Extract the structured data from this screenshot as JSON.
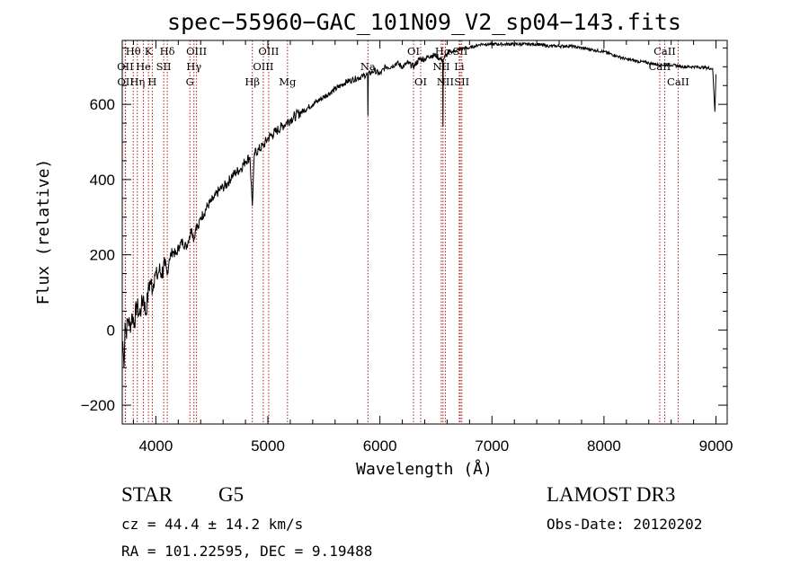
{
  "chart_data": {
    "type": "line",
    "title": "spec−55960−GAC_101N09_V2_sp04−143.fits",
    "xlabel": "Wavelength (Å)",
    "ylabel": "Flux (relative)",
    "xlim": [
      3700,
      9100
    ],
    "ylim": [
      -250,
      770
    ],
    "x_ticks": [
      4000,
      5000,
      6000,
      7000,
      8000,
      9000
    ],
    "x_tick_labels": [
      "4000",
      "5000",
      "6000",
      "7000",
      "8000",
      "9000"
    ],
    "y_ticks": [
      -200,
      0,
      200,
      400,
      600
    ],
    "y_tick_labels": [
      "−200",
      "0",
      "200",
      "400",
      "600"
    ],
    "series": [
      {
        "name": "spectrum",
        "color": "#000000",
        "x": [
          3705,
          3715,
          3725,
          3735,
          3750,
          3770,
          3790,
          3810,
          3830,
          3850,
          3870,
          3890,
          3910,
          3930,
          3950,
          3970,
          3990,
          4010,
          4030,
          4050,
          4080,
          4101,
          4120,
          4150,
          4180,
          4210,
          4240,
          4270,
          4300,
          4320,
          4340,
          4360,
          4380,
          4400,
          4430,
          4460,
          4490,
          4520,
          4560,
          4600,
          4640,
          4680,
          4720,
          4760,
          4800,
          4840,
          4861,
          4880,
          4920,
          4960,
          5000,
          5040,
          5080,
          5120,
          5160,
          5200,
          5250,
          5300,
          5350,
          5400,
          5450,
          5500,
          5550,
          5600,
          5650,
          5700,
          5750,
          5800,
          5850,
          5890,
          5893,
          5897,
          5950,
          6000,
          6050,
          6100,
          6150,
          6200,
          6250,
          6300,
          6350,
          6400,
          6450,
          6500,
          6540,
          6560,
          6563,
          6566,
          6590,
          6620,
          6660,
          6700,
          6750,
          6800,
          6850,
          6900,
          6950,
          7000,
          7100,
          7200,
          7300,
          7400,
          7500,
          7600,
          7700,
          7800,
          7900,
          8000,
          8100,
          8200,
          8300,
          8400,
          8500,
          8600,
          8700,
          8800,
          8900,
          8970,
          8990,
          9000
        ],
        "y": [
          -30,
          -100,
          20,
          -10,
          30,
          10,
          40,
          20,
          70,
          40,
          60,
          90,
          40,
          100,
          130,
          110,
          150,
          140,
          160,
          150,
          170,
          145,
          190,
          210,
          200,
          225,
          235,
          220,
          250,
          270,
          240,
          280,
          270,
          300,
          310,
          330,
          340,
          350,
          370,
          380,
          390,
          410,
          420,
          430,
          450,
          460,
          330,
          470,
          480,
          490,
          510,
          520,
          530,
          540,
          550,
          560,
          570,
          580,
          590,
          600,
          610,
          620,
          630,
          640,
          650,
          660,
          665,
          670,
          675,
          680,
          570,
          680,
          690,
          680,
          700,
          700,
          710,
          700,
          710,
          700,
          720,
          720,
          730,
          730,
          720,
          720,
          540,
          720,
          730,
          740,
          740,
          745,
          750,
          750,
          755,
          760,
          760,
          760,
          760,
          760,
          760,
          760,
          755,
          755,
          755,
          750,
          745,
          740,
          730,
          720,
          715,
          710,
          705,
          705,
          700,
          700,
          698,
          695,
          580,
          680
        ]
      }
    ],
    "lines": [
      {
        "label": "Hθ",
        "wl": 3798,
        "row": 1
      },
      {
        "label": "OII",
        "wl": 3727,
        "row": 2
      },
      {
        "label": "OII",
        "wl": 3729,
        "row": 3
      },
      {
        "label": "Hη",
        "wl": 3835,
        "row": 3
      },
      {
        "label": "He",
        "wl": 3889,
        "row": 2
      },
      {
        "label": "K",
        "wl": 3934,
        "row": 1
      },
      {
        "label": "H",
        "wl": 3968,
        "row": 3
      },
      {
        "label": "SII",
        "wl": 4070,
        "row": 2
      },
      {
        "label": "Hδ",
        "wl": 4102,
        "row": 1
      },
      {
        "label": "OIII",
        "wl": 4363,
        "row": 1
      },
      {
        "label": "Hγ",
        "wl": 4340,
        "row": 2
      },
      {
        "label": "G",
        "wl": 4304,
        "row": 3
      },
      {
        "label": "Hβ",
        "wl": 4861,
        "row": 3
      },
      {
        "label": "OIII",
        "wl": 5007,
        "row": 1
      },
      {
        "label": "OIII",
        "wl": 4959,
        "row": 2
      },
      {
        "label": "Mg",
        "wl": 5175,
        "row": 3
      },
      {
        "label": "Na",
        "wl": 5893,
        "row": 2
      },
      {
        "label": "OI",
        "wl": 6300,
        "row": 1
      },
      {
        "label": "OI",
        "wl": 6364,
        "row": 3
      },
      {
        "label": "Hα",
        "wl": 6563,
        "row": 1
      },
      {
        "label": "NII",
        "wl": 6548,
        "row": 2
      },
      {
        "label": "NII",
        "wl": 6584,
        "row": 3
      },
      {
        "label": "SII",
        "wl": 6717,
        "row": 1
      },
      {
        "label": "Li",
        "wl": 6708,
        "row": 2
      },
      {
        "label": "SII",
        "wl": 6731,
        "row": 3
      },
      {
        "label": "CaII",
        "wl": 8542,
        "row": 1
      },
      {
        "label": "CaII",
        "wl": 8498,
        "row": 2
      },
      {
        "label": "CaII",
        "wl": 8662,
        "row": 3
      }
    ],
    "line_color": "#b01818"
  },
  "info": {
    "object_class": "STAR",
    "subclass": "G5",
    "survey": "LAMOST DR3",
    "redshift": "cz = 44.4 ± 14.2 km/s",
    "obs_date": "Obs-Date: 20120202",
    "coords": "RA = 101.22595, DEC =    9.19488"
  }
}
